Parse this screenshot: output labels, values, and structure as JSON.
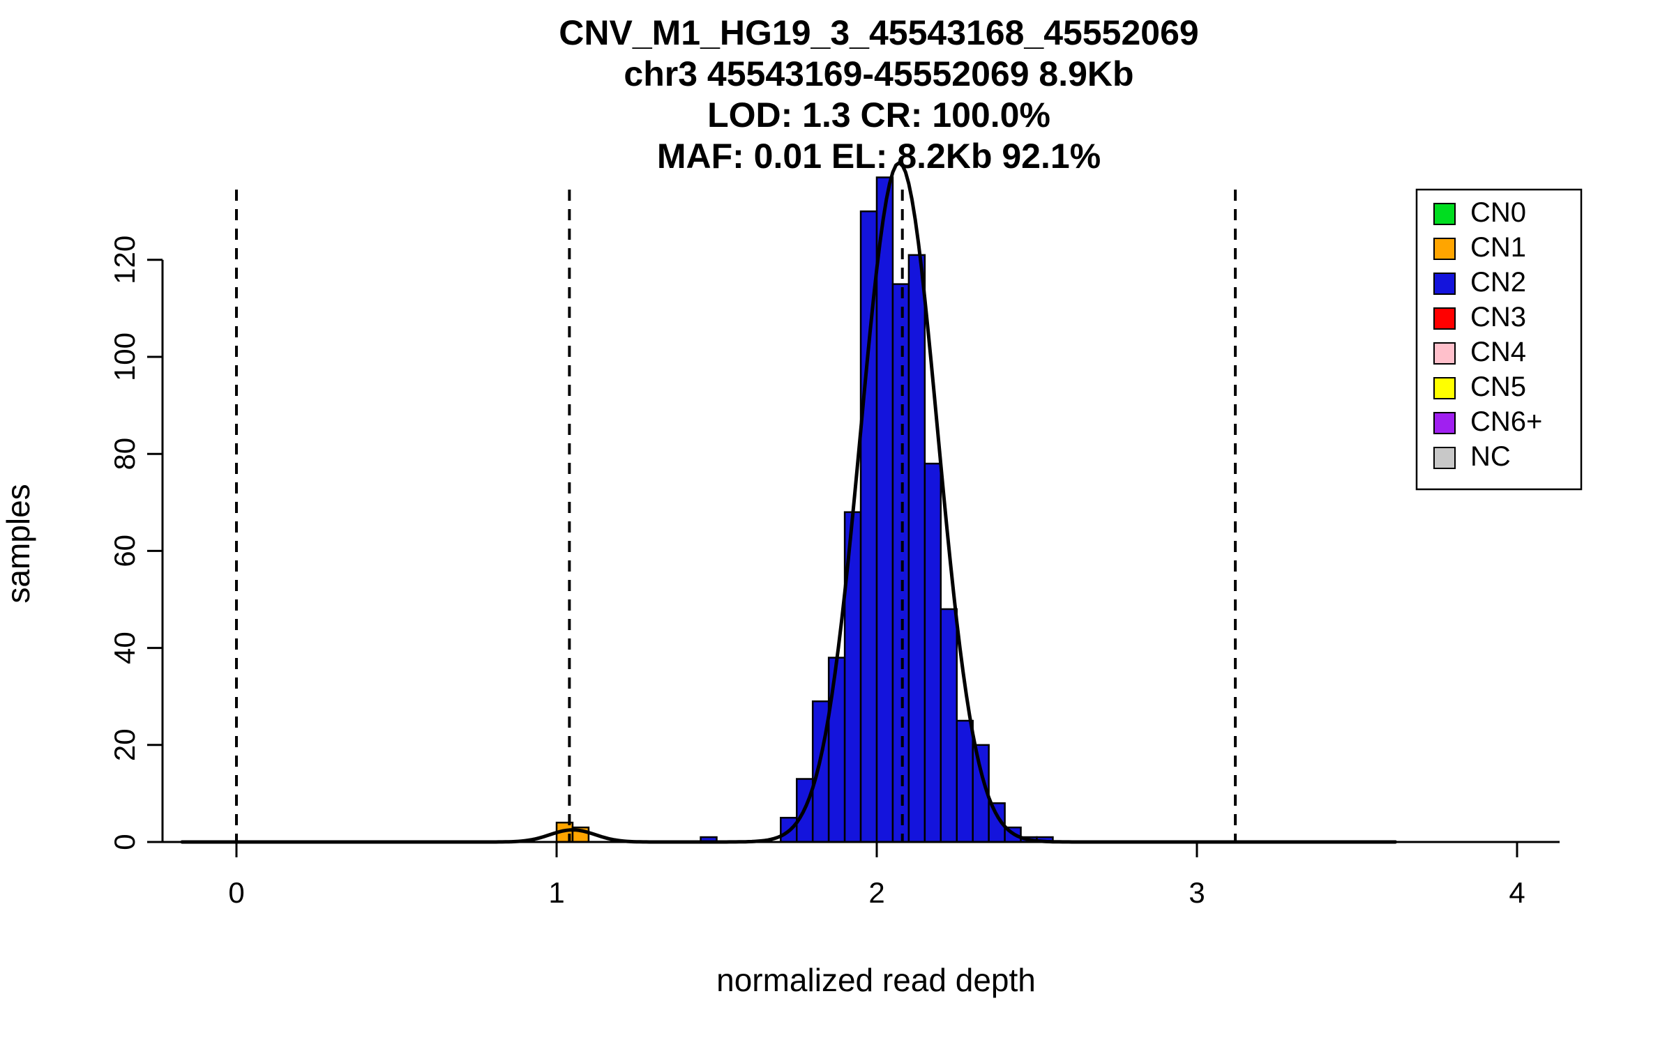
{
  "figure": {
    "title_lines": [
      "CNV_M1_HG19_3_45543168_45552069",
      "chr3 45543169-45552069 8.9Kb",
      "LOD: 1.3 CR: 100.0%",
      "MAF: 0.01 EL: 8.2Kb 92.1%"
    ]
  },
  "chart_data": {
    "type": "bar",
    "subtype": "histogram_with_density_curve",
    "title": "CNV_M1_HG19_3_45543168_45552069",
    "subtitle_lines": [
      "chr3 45543169-45552069 8.9Kb",
      "LOD: 1.3 CR: 100.0%",
      "MAF: 0.01 EL: 8.2Kb 92.1%"
    ],
    "xlabel": "normalized read depth",
    "ylabel": "samples",
    "xlim": [
      -0.25,
      4.15
    ],
    "ylim": [
      0,
      136
    ],
    "xticks": [
      0,
      1,
      2,
      3,
      4
    ],
    "yticks": [
      0,
      20,
      40,
      60,
      80,
      100,
      120
    ],
    "grid": false,
    "bin_width": 0.05,
    "bars": [
      {
        "x0": 1.0,
        "x1": 1.05,
        "count": 4,
        "cn": "CN1"
      },
      {
        "x0": 1.05,
        "x1": 1.1,
        "count": 3,
        "cn": "CN1"
      },
      {
        "x0": 1.45,
        "x1": 1.5,
        "count": 1,
        "cn": "CN2"
      },
      {
        "x0": 1.7,
        "x1": 1.75,
        "count": 5,
        "cn": "CN2"
      },
      {
        "x0": 1.75,
        "x1": 1.8,
        "count": 13,
        "cn": "CN2"
      },
      {
        "x0": 1.8,
        "x1": 1.85,
        "count": 29,
        "cn": "CN2"
      },
      {
        "x0": 1.85,
        "x1": 1.9,
        "count": 38,
        "cn": "CN2"
      },
      {
        "x0": 1.9,
        "x1": 1.95,
        "count": 68,
        "cn": "CN2"
      },
      {
        "x0": 1.95,
        "x1": 2.0,
        "count": 130,
        "cn": "CN2"
      },
      {
        "x0": 2.0,
        "x1": 2.05,
        "count": 137,
        "cn": "CN2"
      },
      {
        "x0": 2.05,
        "x1": 2.1,
        "count": 115,
        "cn": "CN2"
      },
      {
        "x0": 2.1,
        "x1": 2.15,
        "count": 121,
        "cn": "CN2"
      },
      {
        "x0": 2.15,
        "x1": 2.2,
        "count": 78,
        "cn": "CN2"
      },
      {
        "x0": 2.2,
        "x1": 2.25,
        "count": 48,
        "cn": "CN2"
      },
      {
        "x0": 2.25,
        "x1": 2.3,
        "count": 25,
        "cn": "CN2"
      },
      {
        "x0": 2.3,
        "x1": 2.35,
        "count": 20,
        "cn": "CN2"
      },
      {
        "x0": 2.35,
        "x1": 2.4,
        "count": 8,
        "cn": "CN2"
      },
      {
        "x0": 2.4,
        "x1": 2.45,
        "count": 3,
        "cn": "CN2"
      },
      {
        "x0": 2.45,
        "x1": 2.5,
        "count": 1,
        "cn": "CN2"
      },
      {
        "x0": 2.5,
        "x1": 2.55,
        "count": 1,
        "cn": "CN2"
      }
    ],
    "vlines": [
      0,
      1.04,
      2.08,
      3.12
    ],
    "density_curve": {
      "model": "gaussian_mixture",
      "x_range": [
        -0.17,
        3.62
      ],
      "components": [
        {
          "mean": 2.07,
          "sd": 0.12,
          "amplitude": 140
        },
        {
          "mean": 1.05,
          "sd": 0.07,
          "amplitude": 2.5
        }
      ]
    },
    "legend": {
      "position": "top-right",
      "items": [
        {
          "label": "CN0",
          "color": "#00DD20"
        },
        {
          "label": "CN1",
          "color": "#FFA500"
        },
        {
          "label": "CN2",
          "color": "#1414DC"
        },
        {
          "label": "CN3",
          "color": "#FF0000"
        },
        {
          "label": "CN4",
          "color": "#FFC0CB"
        },
        {
          "label": "CN5",
          "color": "#FFFF00"
        },
        {
          "label": "CN6+",
          "color": "#A020F0"
        },
        {
          "label": "NC",
          "color": "#C8C8C8"
        }
      ]
    },
    "style_colors": {
      "curve": "#000000",
      "axis": "#000000",
      "vline": "#000000",
      "bar_border": "#000000",
      "background": "#FFFFFF"
    }
  }
}
